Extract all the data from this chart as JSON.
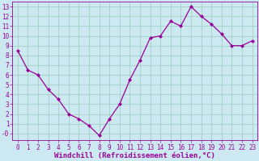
{
  "x": [
    0,
    1,
    2,
    3,
    4,
    5,
    6,
    7,
    8,
    9,
    10,
    11,
    12,
    13,
    14,
    15,
    16,
    17,
    18,
    19,
    20,
    21,
    22,
    23
  ],
  "y": [
    8.5,
    6.5,
    6.0,
    4.5,
    3.5,
    2.0,
    1.5,
    0.8,
    -0.2,
    1.5,
    3.0,
    5.5,
    7.5,
    9.8,
    10.0,
    11.5,
    11.0,
    13.0,
    12.0,
    11.2,
    10.2,
    9.0,
    9.0,
    9.5
  ],
  "line_color": "#990099",
  "marker": "D",
  "marker_size": 2.0,
  "background_color": "#cce8f0",
  "grid_color": "#99ccbb",
  "xlabel": "Windchill (Refroidissement éolien,°C)",
  "ytick_labels": [
    "-0",
    "1",
    "2",
    "3",
    "4",
    "5",
    "6",
    "7",
    "8",
    "9",
    "10",
    "11",
    "12",
    "13"
  ],
  "ytick_values": [
    0,
    1,
    2,
    3,
    4,
    5,
    6,
    7,
    8,
    9,
    10,
    11,
    12,
    13
  ],
  "ylim": [
    -0.7,
    13.5
  ],
  "xlim": [
    -0.5,
    23.5
  ],
  "tick_color": "#990099",
  "label_color": "#990099",
  "xlabel_fontsize": 6.5,
  "tick_fontsize": 5.5,
  "fig_bg": "#cce8f0",
  "linewidth": 0.9
}
